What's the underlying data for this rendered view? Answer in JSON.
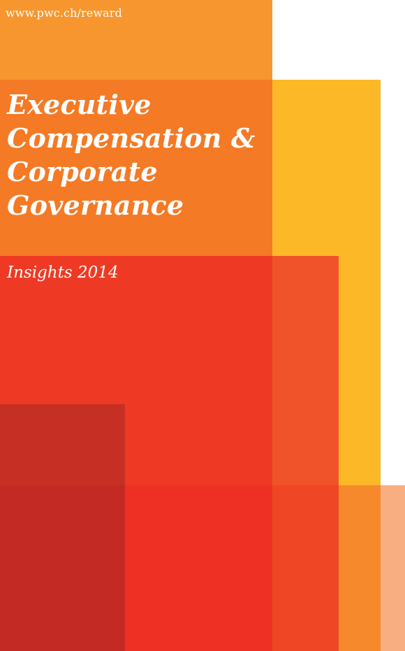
{
  "cover": {
    "url": "www.pwc.ch/reward",
    "title_lines": [
      "Executive",
      "Compensation &",
      "Corporate",
      "Governance"
    ],
    "subtitle": "Insights 2014"
  },
  "colors": {
    "orange_top": "#F7962E",
    "orange_title": "#F47A25",
    "yellow": "#FDB827",
    "red_main": "#EE3A24",
    "red_mid": "#F0532A",
    "dark_red": "#C22A23",
    "red_bottom": "#EE2F23",
    "orange_bottom": "#F6892B",
    "peach": "#F8AE80"
  }
}
